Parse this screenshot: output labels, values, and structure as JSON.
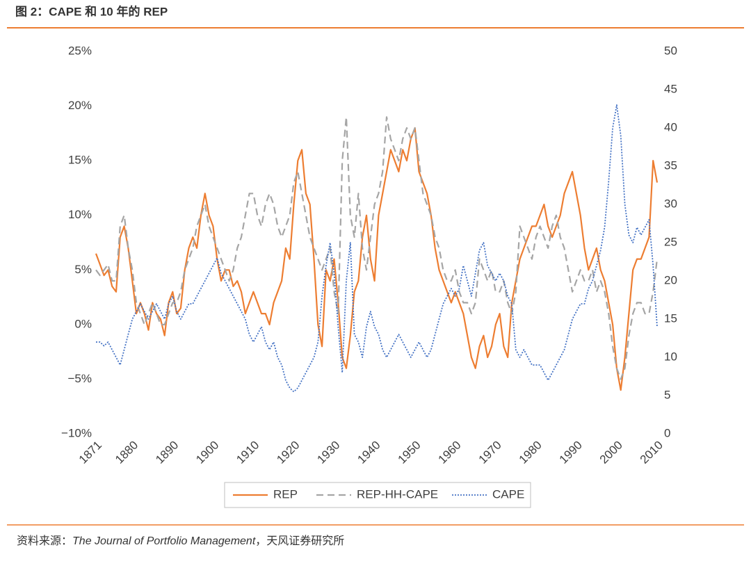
{
  "chart_data": {
    "type": "line",
    "title": "图 2：CAPE 和 10 年的 REP",
    "source_prefix": "资料来源：",
    "source_italic": "The Journal of Portfolio Management",
    "source_suffix": "，天风证券研究所",
    "x": [
      1871,
      1872,
      1873,
      1874,
      1875,
      1876,
      1877,
      1878,
      1879,
      1880,
      1881,
      1882,
      1883,
      1884,
      1885,
      1886,
      1887,
      1888,
      1889,
      1890,
      1891,
      1892,
      1893,
      1894,
      1895,
      1896,
      1897,
      1898,
      1899,
      1900,
      1901,
      1902,
      1903,
      1904,
      1905,
      1906,
      1907,
      1908,
      1909,
      1910,
      1911,
      1912,
      1913,
      1914,
      1915,
      1916,
      1917,
      1918,
      1919,
      1920,
      1921,
      1922,
      1923,
      1924,
      1925,
      1926,
      1927,
      1928,
      1929,
      1930,
      1931,
      1932,
      1933,
      1934,
      1935,
      1936,
      1937,
      1938,
      1939,
      1940,
      1941,
      1942,
      1943,
      1944,
      1945,
      1946,
      1947,
      1948,
      1949,
      1950,
      1951,
      1952,
      1953,
      1954,
      1955,
      1956,
      1957,
      1958,
      1959,
      1960,
      1961,
      1962,
      1963,
      1964,
      1965,
      1966,
      1967,
      1968,
      1969,
      1970,
      1971,
      1972,
      1973,
      1974,
      1975,
      1976,
      1977,
      1978,
      1979,
      1980,
      1981,
      1982,
      1983,
      1984,
      1985,
      1986,
      1987,
      1988,
      1989,
      1990,
      1991,
      1992,
      1993,
      1994,
      1995,
      1996,
      1997,
      1998,
      1999,
      2000,
      2001,
      2002,
      2003,
      2004,
      2005,
      2006,
      2007,
      2008,
      2009,
      2010
    ],
    "xlim": [
      1871,
      2010
    ],
    "xticks": [
      1871,
      1880,
      1890,
      1900,
      1910,
      1920,
      1930,
      1940,
      1950,
      1960,
      1970,
      1980,
      1990,
      2000,
      2010
    ],
    "ylim": [
      -10,
      25
    ],
    "yticks": [
      {
        "value": -10,
        "label": "−10%"
      },
      {
        "value": -5,
        "label": "−5%"
      },
      {
        "value": 0,
        "label": "0%"
      },
      {
        "value": 5,
        "label": "5%"
      },
      {
        "value": 10,
        "label": "10%"
      },
      {
        "value": 15,
        "label": "15%"
      },
      {
        "value": 20,
        "label": "20%"
      },
      {
        "value": 25,
        "label": "25%"
      }
    ],
    "y2lim": [
      0,
      50
    ],
    "y2ticks": [
      0,
      5,
      10,
      15,
      20,
      25,
      30,
      35,
      40,
      45,
      50
    ],
    "grid": false,
    "legend": "bottom",
    "series": [
      {
        "name": "REP",
        "color": "#ed7d31",
        "style": "solid",
        "values": [
          6.5,
          5.5,
          4.5,
          5,
          3.5,
          3,
          8,
          9,
          7,
          4,
          1,
          2,
          1,
          -0.5,
          2,
          1,
          0.5,
          -1,
          2,
          3,
          1,
          1.5,
          5,
          7,
          8,
          7,
          10,
          12,
          10,
          9,
          6,
          4,
          5,
          5,
          3.5,
          4,
          3,
          1,
          2,
          3,
          2,
          1,
          1,
          0,
          2,
          3,
          4,
          7,
          6,
          11,
          15,
          16,
          12,
          11,
          6,
          0,
          -2,
          5,
          4,
          6,
          2,
          -3,
          -4,
          -1,
          3,
          4,
          8,
          10,
          6,
          4,
          10,
          12,
          14,
          16,
          15,
          14,
          16,
          15,
          17,
          18,
          14,
          13,
          12,
          10,
          7,
          5,
          4,
          3,
          2,
          3,
          2,
          1,
          -1,
          -3,
          -4,
          -2,
          -1,
          -3,
          -2,
          0,
          1,
          -2,
          -3,
          2,
          4,
          6,
          7,
          8,
          9,
          9,
          10,
          11,
          9,
          8,
          9,
          10,
          12,
          13,
          14,
          12,
          10,
          7,
          5,
          6,
          7,
          5,
          4,
          2,
          0,
          -4,
          -6,
          -3,
          1,
          5,
          6,
          6,
          7,
          8,
          15,
          13
        ]
      },
      {
        "name": "REP-HH-CAPE",
        "color": "#a5a5a5",
        "style": "dashed",
        "values": [
          5,
          4.5,
          5,
          5.5,
          4,
          4,
          9,
          10,
          7,
          5,
          2,
          1,
          0,
          1,
          2,
          1,
          0,
          0,
          1,
          2,
          2,
          3,
          5,
          6,
          7,
          9,
          10,
          11,
          9,
          8,
          7,
          6,
          5,
          4,
          5,
          7,
          8,
          10,
          12,
          12,
          10,
          9,
          11,
          12,
          11,
          9,
          8,
          9,
          10,
          13,
          14,
          12,
          10,
          8,
          7,
          6,
          5,
          6,
          7,
          3,
          1,
          15,
          19,
          10,
          8,
          12,
          7,
          5,
          8,
          11,
          12,
          14,
          19,
          17,
          16,
          15,
          17,
          18,
          17,
          18,
          15,
          12,
          11,
          10,
          8,
          7,
          5,
          4,
          4,
          5,
          3,
          2,
          2,
          1,
          2,
          6,
          5,
          4,
          5,
          3,
          3,
          4,
          2,
          1,
          3,
          9,
          8,
          7,
          6,
          8,
          9,
          8,
          7,
          9,
          10,
          8,
          7,
          5,
          3,
          4,
          5,
          4,
          4,
          5,
          3,
          4,
          3,
          1,
          -2,
          -4,
          -5,
          -4,
          -1,
          1,
          2,
          2,
          1,
          1,
          3,
          6
        ]
      },
      {
        "name": "CAPE",
        "color": "#4472c4",
        "style": "dotted",
        "axis": "y2",
        "values": [
          12,
          12,
          11.5,
          12,
          11,
          10,
          9,
          11,
          13,
          15,
          16,
          17,
          16,
          15,
          16,
          17,
          16,
          15,
          17,
          18,
          16,
          15,
          16,
          17,
          17,
          18,
          19,
          20,
          21,
          22,
          23,
          21,
          20,
          19,
          18,
          17,
          16,
          15,
          13,
          12,
          13,
          14,
          12,
          11,
          12,
          10,
          9,
          7,
          6,
          5.5,
          6,
          7,
          8,
          9,
          10,
          12,
          18,
          22,
          25,
          21,
          14,
          8,
          20,
          25,
          13,
          12,
          10,
          14,
          16,
          14,
          13,
          11,
          10,
          11,
          12,
          13,
          12,
          11,
          10,
          11,
          12,
          11,
          10,
          11,
          13,
          15,
          17,
          18,
          19,
          18,
          19,
          22,
          20,
          18,
          21,
          24,
          25,
          22,
          21,
          20,
          21,
          20,
          18,
          17,
          11,
          10,
          11,
          10,
          9,
          9,
          9,
          8,
          7,
          8,
          9,
          10,
          11,
          13,
          15,
          16,
          17,
          17,
          19,
          20,
          22,
          24,
          27,
          33,
          40,
          43,
          39,
          30,
          26,
          25,
          27,
          26,
          27,
          28,
          22,
          14
        ]
      }
    ]
  }
}
